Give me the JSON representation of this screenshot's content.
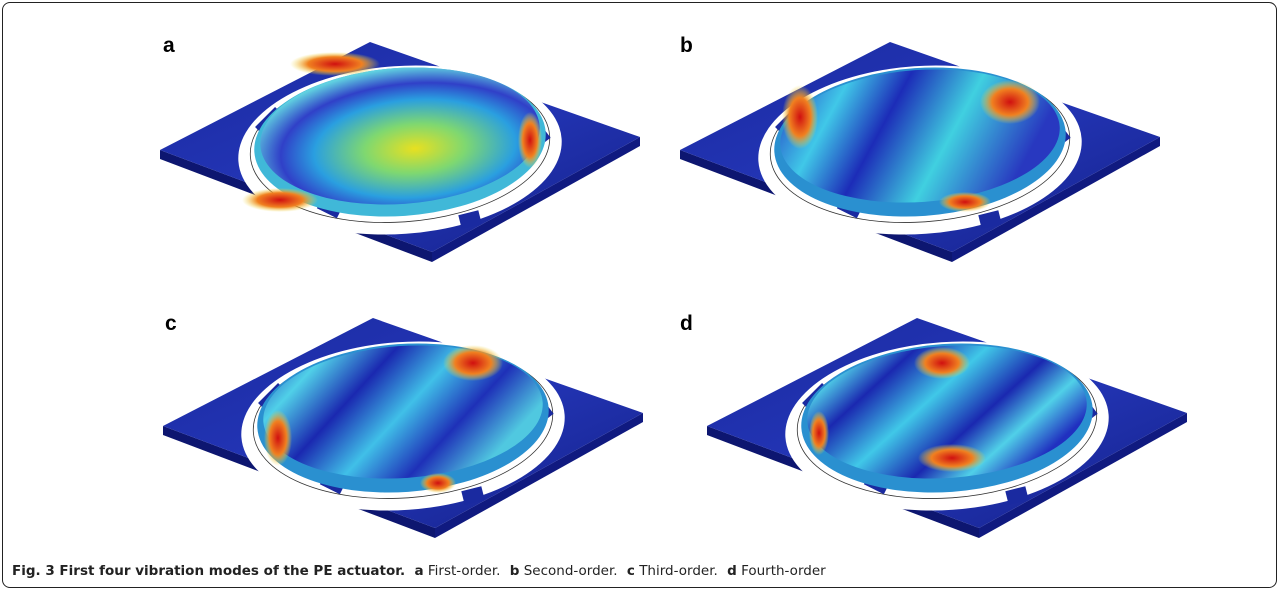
{
  "figure": {
    "panels": [
      {
        "label": "a"
      },
      {
        "label": "b"
      },
      {
        "label": "c"
      },
      {
        "label": "d"
      }
    ],
    "caption": {
      "title": "Fig. 3 First four vibration modes of the PE actuator.",
      "parts": [
        {
          "label": "a",
          "text": "First-order."
        },
        {
          "label": "b",
          "text": "Second-order."
        },
        {
          "label": "c",
          "text": "Third-order."
        },
        {
          "label": "d",
          "text": "Fourth-order"
        }
      ]
    }
  }
}
